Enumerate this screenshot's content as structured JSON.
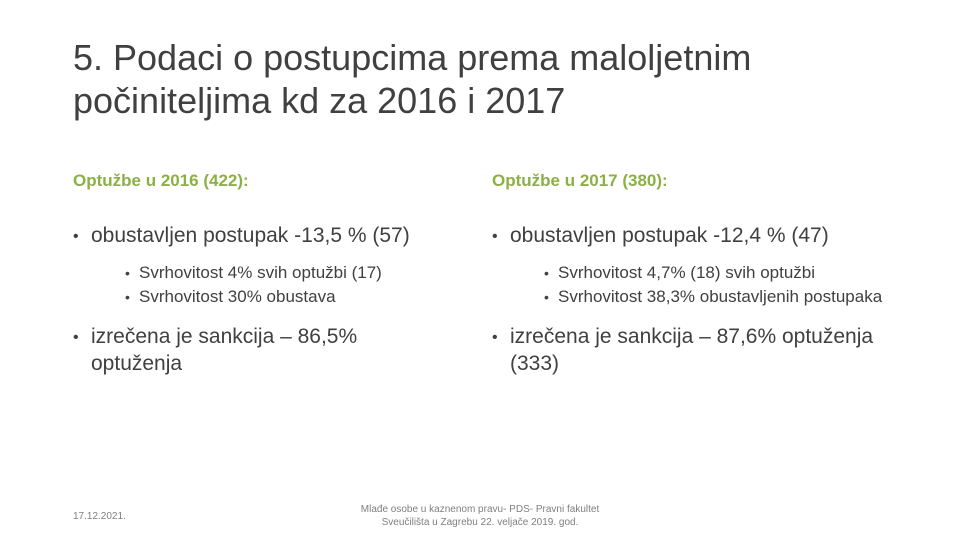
{
  "slide": {
    "title_line1": "5. Podaci o postupcima prema maloljetnim",
    "title_line2": "počiniteljima kd za 2016 i 2017"
  },
  "left": {
    "heading": "Optužbe u 2016 (422):",
    "item1": "obustavljen postupak -13,5 % (57)",
    "sub1": "Svrhovitost 4% svih optužbi (17)",
    "sub2": "Svrhovitost 30% obustava",
    "item2": "izrečena je sankcija – 86,5% optuženja"
  },
  "right": {
    "heading": "Optužbe u 2017 (380):",
    "item1": "obustavljen postupak -12,4 % (47)",
    "sub1": "Svrhovitost 4,7% (18) svih optužbi",
    "sub2": "Svrhovitost 38,3% obustavljenih postupaka",
    "item2": "izrečena je sankcija – 87,6% optuženja (333)"
  },
  "footer": {
    "date": "17.12.2021.",
    "line1": "Mlađe osobe u kaznenom pravu- PDS- Pravni fakultet",
    "line2": "Sveučilišta u Zagrebu 22. veljače 2019. god."
  },
  "colors": {
    "heading_green": "#8cb043",
    "text": "#404040"
  }
}
